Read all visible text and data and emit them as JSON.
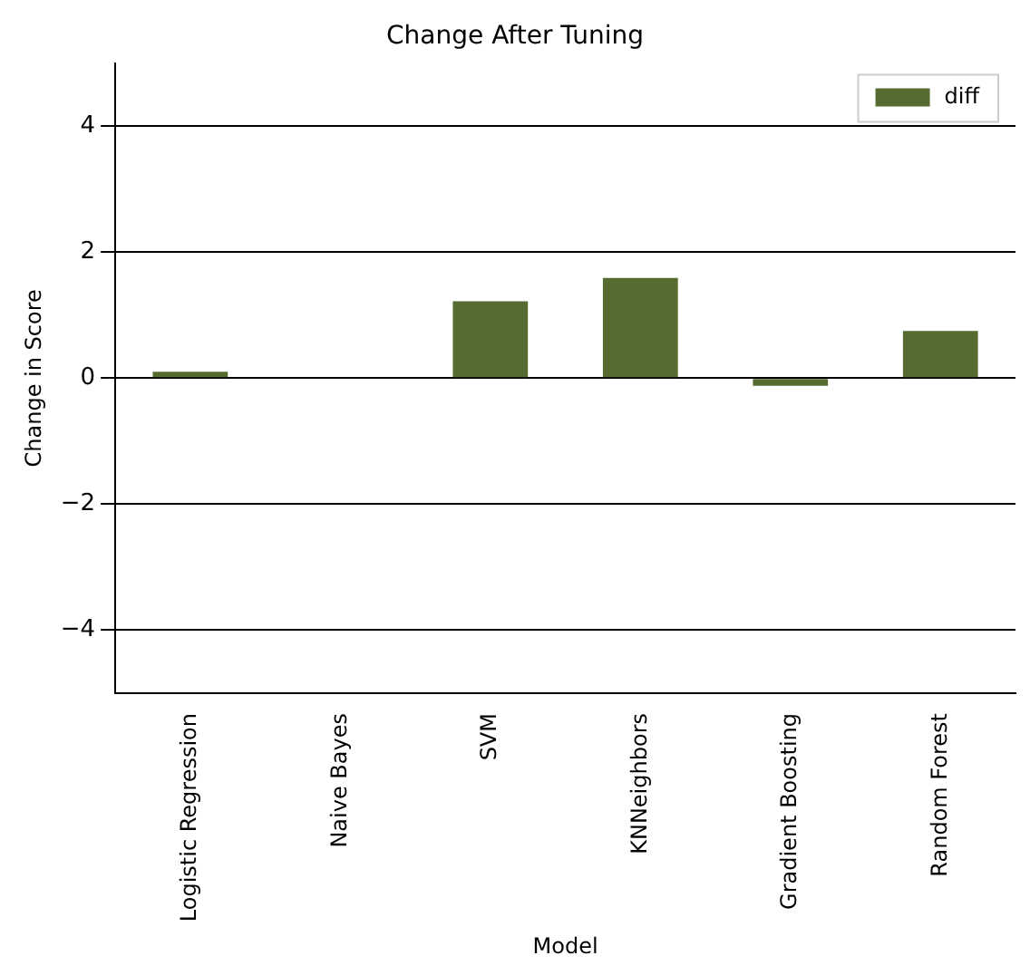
{
  "chart_data": {
    "type": "bar",
    "title": "Change After Tuning",
    "xlabel": "Model",
    "ylabel": "Change in Score",
    "categories": [
      "Logistic Regression",
      "Naive Bayes",
      "SVM",
      "KNNeighbors",
      "Gradient Boosting",
      "Random Forest"
    ],
    "series": [
      {
        "name": "diff",
        "color": "#556b2f",
        "values": [
          0.1,
          0,
          1.22,
          1.59,
          -0.12,
          0.75
        ]
      }
    ],
    "ylim": [
      -5,
      5
    ],
    "yticks": [
      -4,
      -2,
      0,
      2,
      4
    ],
    "grid": "y",
    "legend": "top right"
  }
}
